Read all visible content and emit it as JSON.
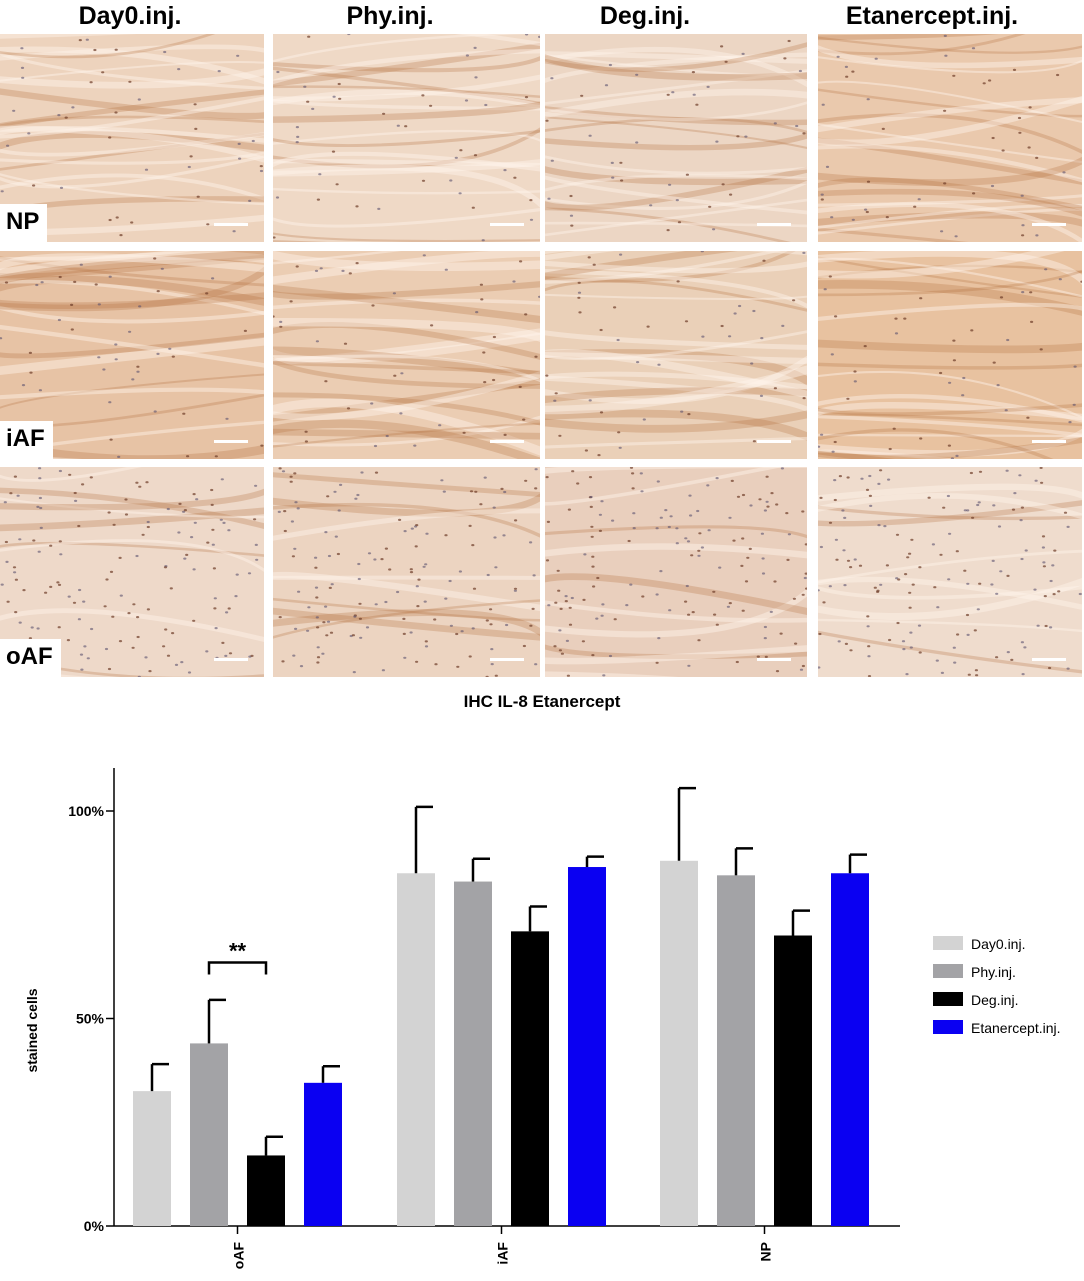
{
  "micrograph_grid": {
    "columns": [
      {
        "label": "Day0.inj."
      },
      {
        "label": "Phy.inj."
      },
      {
        "label": "Deg.inj."
      },
      {
        "label": "Etanercept.inj."
      }
    ],
    "rows": [
      {
        "label": "NP",
        "tones": [
          "#edd3bd",
          "#efd9c6",
          "#ecd6c4",
          "#eac9ad"
        ]
      },
      {
        "label": "iAF",
        "tones": [
          "#e7c3a5",
          "#ebcdb3",
          "#ead0b8",
          "#e8c2a0"
        ]
      },
      {
        "label": "oAF",
        "tones": [
          "#eed9c9",
          "#ecd4c1",
          "#e9cfbd",
          "#efdccd"
        ]
      }
    ]
  },
  "figure_title": "IHC IL-8 Etanercept",
  "chart_data": {
    "type": "bar",
    "categories": [
      "oAF",
      "iAF",
      "NP"
    ],
    "ylabel": "stained cells",
    "xlabel": "",
    "ylim": [
      0,
      100
    ],
    "yticks": [
      0,
      50,
      100
    ],
    "ytick_labels": [
      "0%",
      "50%",
      "100%"
    ],
    "grid": false,
    "legend_position": "right",
    "series": [
      {
        "name": "Day0.inj.",
        "color": "#d3d3d3",
        "values": [
          32.5,
          85,
          88
        ],
        "errors": [
          6.5,
          16,
          17.5
        ]
      },
      {
        "name": "Phy.inj.",
        "color": "#a3a3a6",
        "values": [
          44,
          83,
          84.5
        ],
        "errors": [
          10.5,
          5.5,
          6.5
        ]
      },
      {
        "name": "Deg.inj.",
        "color": "#000000",
        "values": [
          17,
          71,
          70
        ],
        "errors": [
          4.5,
          6,
          6
        ]
      },
      {
        "name": "Etanercept.inj.",
        "color": "#0a00f2",
        "values": [
          34.5,
          86.5,
          85
        ],
        "errors": [
          4,
          2.5,
          4.5
        ]
      }
    ],
    "annotations": [
      {
        "text": "**",
        "category": "oAF",
        "from_series": "Phy.inj.",
        "to_series": "Deg.inj.",
        "y": 63.5
      }
    ]
  }
}
